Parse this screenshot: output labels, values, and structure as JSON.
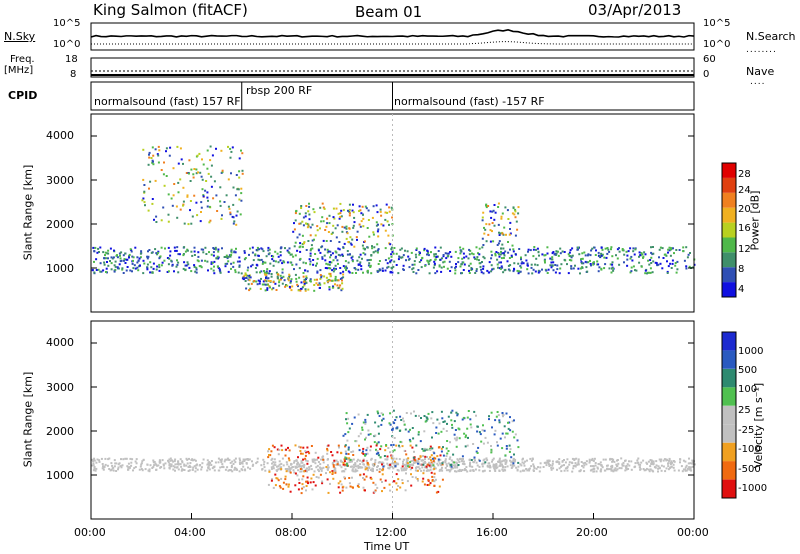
{
  "header": {
    "station": "King Salmon (fitACF)",
    "beam": "Beam 01",
    "date": "03/Apr/2013"
  },
  "top_panels": {
    "nsky_label": "N.Sky",
    "nsky_ticks": [
      "10^5",
      "10^0"
    ],
    "nsearch_label": "N.Search",
    "nsearch_ticks": [
      "10^5",
      "10^0"
    ],
    "freq_label": "Freq.",
    "freq_unit": "[MHz]",
    "freq_ticks": [
      "18",
      "8"
    ],
    "nave_label": "Nave",
    "nave_ticks": [
      "60",
      "0"
    ],
    "cpid_label": "CPID"
  },
  "cpid_segments": [
    {
      "label": "normalsound (fast) 157 RF",
      "start_hour": 0,
      "end_hour": 6
    },
    {
      "label": "rbsp 200 RF",
      "start_hour": 6,
      "end_hour": 12
    },
    {
      "label": "normalsound (fast) -157 RF",
      "start_hour": 12,
      "end_hour": 24
    }
  ],
  "chart_data": [
    {
      "type": "heatmap",
      "panel": "power",
      "ylabel": "Slant Range [km]",
      "ylim": [
        0,
        4500
      ],
      "yticks": [
        "1000",
        "2000",
        "3000",
        "4000"
      ],
      "xlim": [
        0,
        24
      ],
      "colorbar": {
        "label": "Power [dB]",
        "ticks": [
          "4",
          "8",
          "12",
          "16",
          "20",
          "24",
          "28"
        ],
        "colors": [
          "#1010e0",
          "#2f4fb4",
          "#3f8f6a",
          "#4fb84a",
          "#b8d020",
          "#f0b020",
          "#f08020",
          "#e04010",
          "#e00000"
        ]
      },
      "features": [
        {
          "name": "main band",
          "start_hour": 0,
          "end_hour": 24,
          "range_km": [
            900,
            1500
          ]
        },
        {
          "name": "upper patch",
          "start_hour": 2,
          "end_hour": 6,
          "range_km": [
            2000,
            3800
          ]
        },
        {
          "name": "near-range echoes",
          "start_hour": 6,
          "end_hour": 10,
          "range_km": [
            500,
            900
          ]
        },
        {
          "name": "rising arc",
          "start_hour": 8,
          "end_hour": 12,
          "range_km": [
            1500,
            2500
          ]
        },
        {
          "name": "plume",
          "start_hour": 15.5,
          "end_hour": 17,
          "range_km": [
            1500,
            2500
          ]
        }
      ]
    },
    {
      "type": "heatmap",
      "panel": "velocity",
      "ylabel": "Slant Range [km]",
      "ylim": [
        0,
        4500
      ],
      "yticks": [
        "1000",
        "2000",
        "3000",
        "4000"
      ],
      "xlabel": "Time UT",
      "xticks": [
        "00:00",
        "04:00",
        "08:00",
        "12:00",
        "16:00",
        "20:00",
        "00:00"
      ],
      "xlim": [
        0,
        24
      ],
      "colorbar": {
        "label": "Velocity [m s⁻¹]",
        "ticks": [
          "1000",
          "500",
          "100",
          "25",
          "-25",
          "-100",
          "-500",
          "-1000"
        ],
        "colors": [
          "#1c2ad0",
          "#2a5ac0",
          "#2e8a70",
          "#50c050",
          "#c0c0c0",
          "#c0c0c0",
          "#f0a020",
          "#f06a10",
          "#e01010"
        ]
      },
      "features": [
        {
          "name": "ground scatter band",
          "start_hour": 0,
          "end_hour": 24,
          "range_km": [
            1100,
            1400
          ],
          "velocity": "low"
        },
        {
          "name": "negative flow",
          "start_hour": 7,
          "end_hour": 14,
          "range_km": [
            600,
            1700
          ],
          "velocity": "negative"
        },
        {
          "name": "positive flow",
          "start_hour": 10,
          "end_hour": 17,
          "range_km": [
            1200,
            2500
          ],
          "velocity": "positive"
        }
      ]
    }
  ]
}
